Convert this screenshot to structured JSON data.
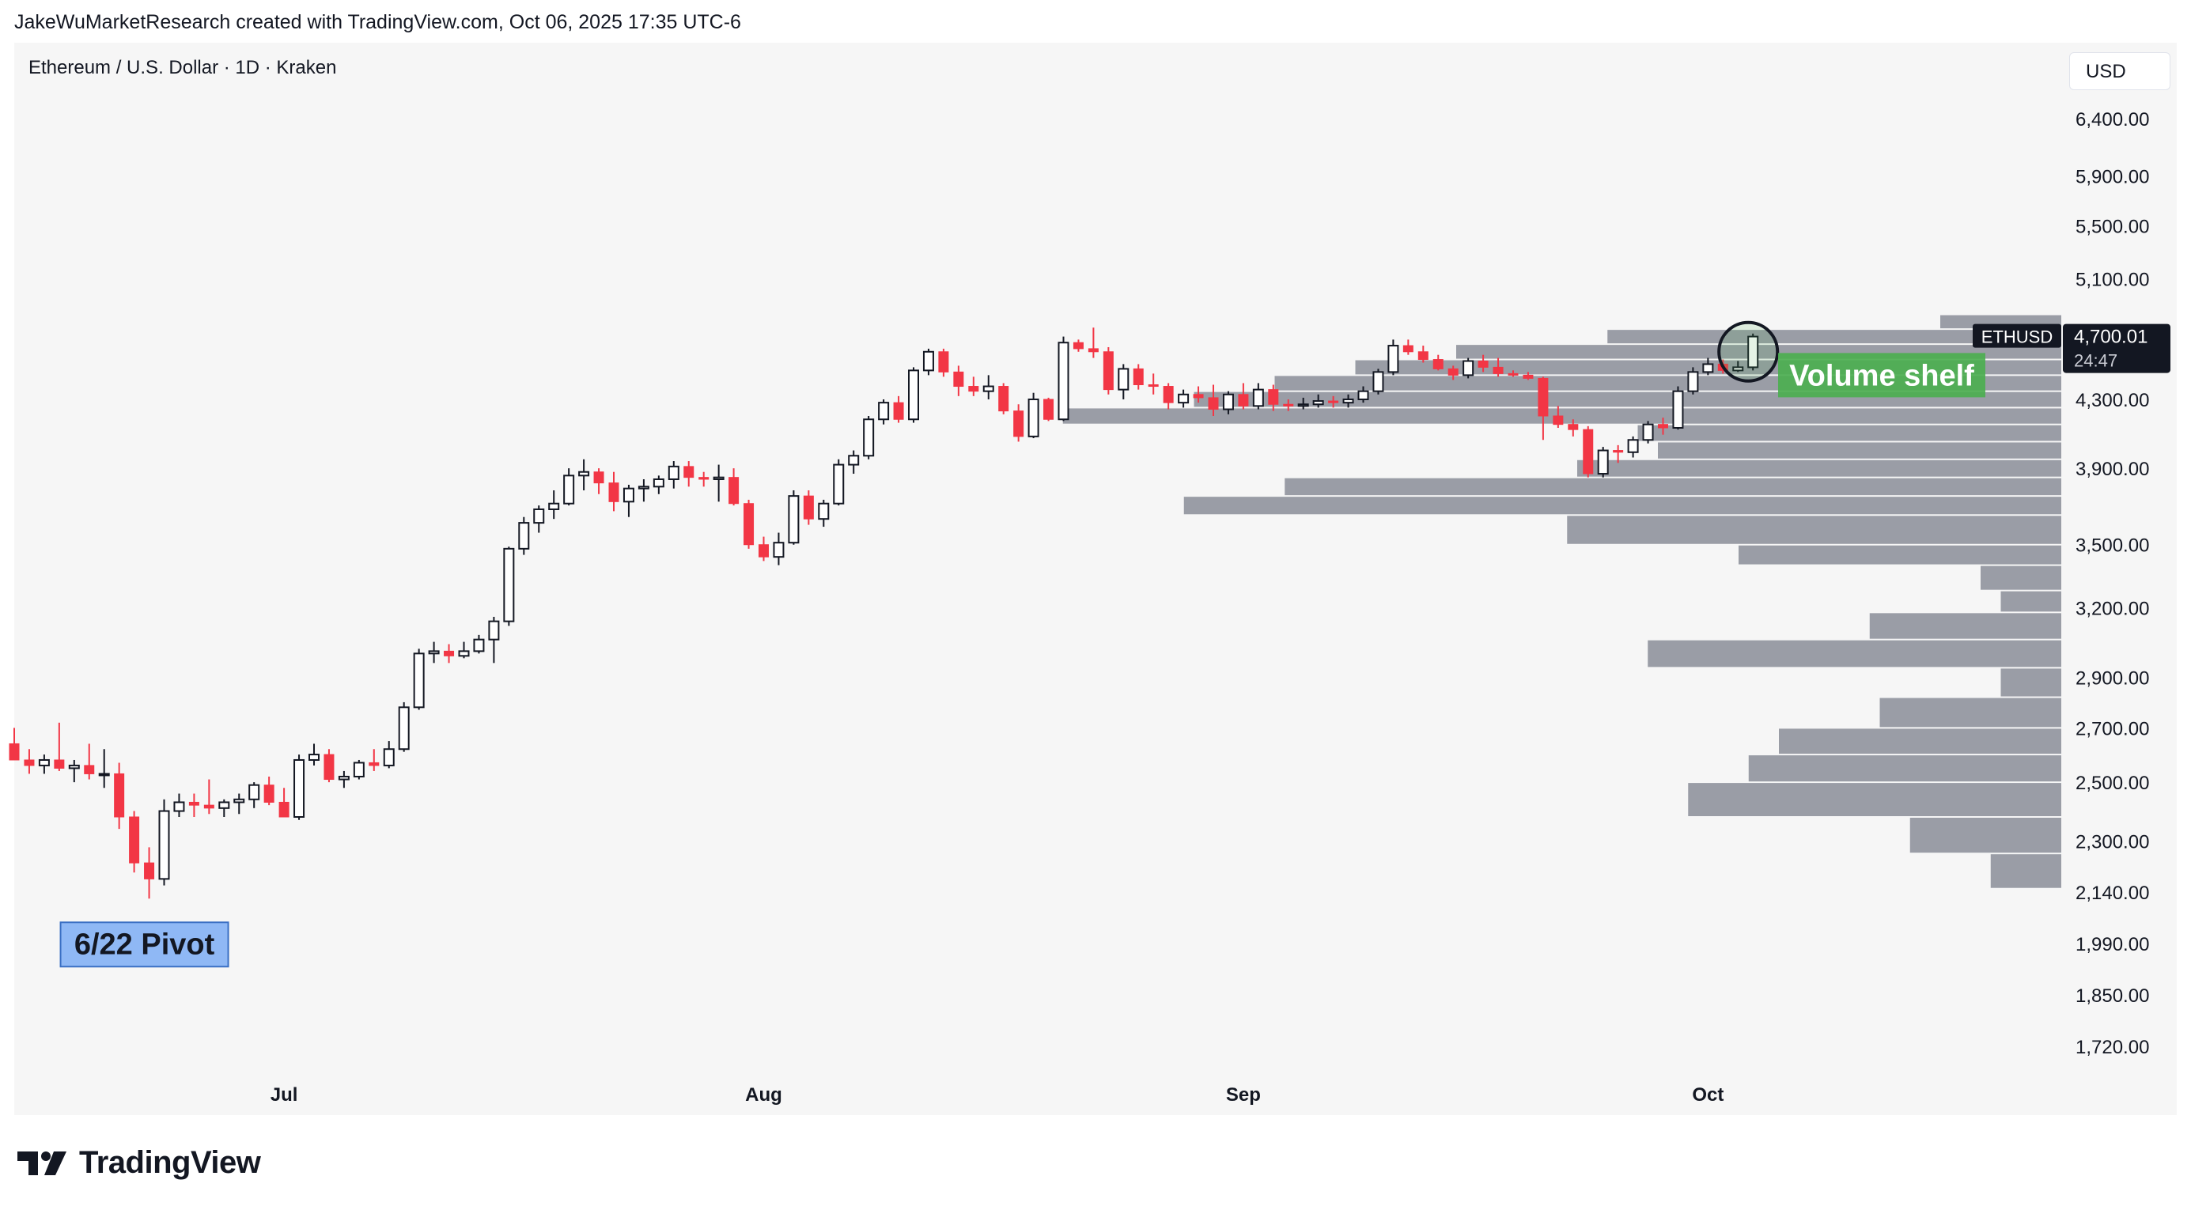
{
  "header": {
    "attribution": "JakeWuMarketResearch created with TradingView.com, Oct 06, 2025 17:35 UTC-6",
    "chart_title": "Ethereum / U.S. Dollar · 1D · Kraken",
    "currency_button": "USD"
  },
  "footer": {
    "brand": "TradingView"
  },
  "colors": {
    "up": "#ffffff",
    "down": "#f23645",
    "border": "#131722",
    "volume": "#9598a1",
    "pivot_bg": "#8fb8f5",
    "shelf_bg": "#4caf50"
  },
  "chart_data": {
    "type": "candlestick",
    "title": "Ethereum / U.S. Dollar · 1D · Kraken",
    "symbol": "ETHUSD",
    "last_price_label": "4,700.01",
    "countdown_label": "24:47",
    "y_scale": "log",
    "ylim": [
      1650,
      7000
    ],
    "y_tick_labels": [
      "6,400.00",
      "5,900.00",
      "5,500.00",
      "5,100.00",
      "4,300.00",
      "3,900.00",
      "3,500.00",
      "3,200.00",
      "2,900.00",
      "2,700.00",
      "2,500.00",
      "2,300.00",
      "2,140.00",
      "1,990.00",
      "1,850.00",
      "1,720.00"
    ],
    "y_tick_values": [
      6400,
      5900,
      5500,
      5100,
      4300,
      3900,
      3500,
      3200,
      2900,
      2700,
      2500,
      2300,
      2140,
      1990,
      1850,
      1720
    ],
    "x_tick_labels": [
      "Jul",
      "Aug",
      "Sep",
      "Oct"
    ],
    "x_tick_indices": [
      18,
      50,
      82,
      113
    ],
    "candles": [
      [
        2640,
        2700,
        2580,
        2580
      ],
      [
        2580,
        2620,
        2530,
        2560
      ],
      [
        2560,
        2600,
        2530,
        2580
      ],
      [
        2580,
        2720,
        2540,
        2550
      ],
      [
        2550,
        2580,
        2500,
        2560
      ],
      [
        2560,
        2640,
        2510,
        2530
      ],
      [
        2530,
        2620,
        2480,
        2530
      ],
      [
        2530,
        2570,
        2340,
        2380
      ],
      [
        2380,
        2400,
        2200,
        2230
      ],
      [
        2230,
        2280,
        2120,
        2180
      ],
      [
        2180,
        2440,
        2160,
        2400
      ],
      [
        2400,
        2460,
        2380,
        2430
      ],
      [
        2430,
        2460,
        2380,
        2420
      ],
      [
        2420,
        2510,
        2390,
        2410
      ],
      [
        2410,
        2440,
        2380,
        2430
      ],
      [
        2430,
        2460,
        2390,
        2440
      ],
      [
        2440,
        2500,
        2410,
        2490
      ],
      [
        2490,
        2520,
        2420,
        2430
      ],
      [
        2430,
        2480,
        2380,
        2380
      ],
      [
        2380,
        2600,
        2370,
        2580
      ],
      [
        2580,
        2640,
        2560,
        2600
      ],
      [
        2600,
        2620,
        2500,
        2510
      ],
      [
        2510,
        2540,
        2480,
        2520
      ],
      [
        2520,
        2580,
        2510,
        2570
      ],
      [
        2570,
        2620,
        2540,
        2560
      ],
      [
        2560,
        2650,
        2550,
        2620
      ],
      [
        2620,
        2800,
        2610,
        2780
      ],
      [
        2780,
        3020,
        2770,
        3000
      ],
      [
        3000,
        3050,
        2960,
        3010
      ],
      [
        3010,
        3040,
        2960,
        2990
      ],
      [
        2990,
        3050,
        2980,
        3010
      ],
      [
        3010,
        3080,
        3000,
        3060
      ],
      [
        3060,
        3160,
        2960,
        3140
      ],
      [
        3140,
        3490,
        3120,
        3480
      ],
      [
        3480,
        3640,
        3450,
        3610
      ],
      [
        3610,
        3700,
        3560,
        3680
      ],
      [
        3680,
        3780,
        3630,
        3710
      ],
      [
        3710,
        3900,
        3700,
        3860
      ],
      [
        3860,
        3950,
        3780,
        3880
      ],
      [
        3880,
        3900,
        3760,
        3820
      ],
      [
        3820,
        3880,
        3670,
        3720
      ],
      [
        3720,
        3810,
        3640,
        3790
      ],
      [
        3790,
        3840,
        3720,
        3800
      ],
      [
        3800,
        3860,
        3760,
        3840
      ],
      [
        3840,
        3940,
        3790,
        3910
      ],
      [
        3910,
        3940,
        3800,
        3850
      ],
      [
        3850,
        3880,
        3800,
        3840
      ],
      [
        3840,
        3920,
        3720,
        3850
      ],
      [
        3850,
        3900,
        3700,
        3710
      ],
      [
        3710,
        3730,
        3480,
        3500
      ],
      [
        3500,
        3540,
        3420,
        3440
      ],
      [
        3440,
        3560,
        3400,
        3510
      ],
      [
        3510,
        3780,
        3500,
        3750
      ],
      [
        3750,
        3780,
        3600,
        3630
      ],
      [
        3630,
        3730,
        3590,
        3710
      ],
      [
        3710,
        3950,
        3700,
        3920
      ],
      [
        3920,
        4000,
        3870,
        3970
      ],
      [
        3970,
        4200,
        3950,
        4180
      ],
      [
        4180,
        4300,
        4150,
        4280
      ],
      [
        4280,
        4320,
        4160,
        4180
      ],
      [
        4180,
        4500,
        4160,
        4480
      ],
      [
        4480,
        4620,
        4450,
        4600
      ],
      [
        4600,
        4620,
        4440,
        4470
      ],
      [
        4470,
        4510,
        4320,
        4380
      ],
      [
        4380,
        4440,
        4320,
        4350
      ],
      [
        4350,
        4450,
        4300,
        4380
      ],
      [
        4380,
        4400,
        4210,
        4230
      ],
      [
        4230,
        4270,
        4050,
        4080
      ],
      [
        4080,
        4340,
        4070,
        4300
      ],
      [
        4300,
        4310,
        4170,
        4180
      ],
      [
        4180,
        4700,
        4170,
        4660
      ],
      [
        4660,
        4680,
        4600,
        4620
      ],
      [
        4620,
        4760,
        4560,
        4600
      ],
      [
        4600,
        4630,
        4330,
        4360
      ],
      [
        4360,
        4520,
        4300,
        4490
      ],
      [
        4490,
        4520,
        4360,
        4390
      ],
      [
        4390,
        4460,
        4330,
        4380
      ],
      [
        4380,
        4400,
        4240,
        4280
      ],
      [
        4280,
        4360,
        4250,
        4330
      ],
      [
        4330,
        4380,
        4280,
        4310
      ],
      [
        4310,
        4390,
        4200,
        4240
      ],
      [
        4240,
        4350,
        4210,
        4330
      ],
      [
        4330,
        4400,
        4240,
        4260
      ],
      [
        4260,
        4400,
        4240,
        4360
      ],
      [
        4360,
        4390,
        4230,
        4270
      ],
      [
        4270,
        4300,
        4230,
        4260
      ],
      [
        4260,
        4310,
        4240,
        4270
      ],
      [
        4270,
        4330,
        4250,
        4290
      ],
      [
        4290,
        4320,
        4250,
        4280
      ],
      [
        4280,
        4330,
        4250,
        4300
      ],
      [
        4300,
        4380,
        4280,
        4350
      ],
      [
        4350,
        4490,
        4330,
        4470
      ],
      [
        4470,
        4680,
        4450,
        4640
      ],
      [
        4640,
        4680,
        4580,
        4600
      ],
      [
        4600,
        4640,
        4530,
        4550
      ],
      [
        4550,
        4580,
        4480,
        4490
      ],
      [
        4490,
        4510,
        4420,
        4450
      ],
      [
        4450,
        4560,
        4430,
        4540
      ],
      [
        4540,
        4580,
        4470,
        4500
      ],
      [
        4500,
        4560,
        4440,
        4460
      ],
      [
        4460,
        4480,
        4440,
        4450
      ],
      [
        4450,
        4470,
        4420,
        4430
      ],
      [
        4430,
        4440,
        4060,
        4200
      ],
      [
        4200,
        4260,
        4130,
        4150
      ],
      [
        4150,
        4180,
        4080,
        4120
      ],
      [
        4120,
        4140,
        3850,
        3870
      ],
      [
        3870,
        4020,
        3850,
        4000
      ],
      [
        4000,
        4030,
        3930,
        3990
      ],
      [
        3990,
        4080,
        3960,
        4060
      ],
      [
        4060,
        4170,
        4040,
        4150
      ],
      [
        4150,
        4190,
        4090,
        4130
      ],
      [
        4130,
        4380,
        4120,
        4350
      ],
      [
        4350,
        4500,
        4330,
        4470
      ],
      [
        4470,
        4560,
        4450,
        4520
      ],
      [
        4520,
        4550,
        4460,
        4480
      ],
      [
        4480,
        4540,
        4470,
        4500
      ],
      [
        4500,
        4720,
        4480,
        4700
      ]
    ],
    "volume_profile": [
      [
        4750,
        4850,
        60
      ],
      [
        4650,
        4750,
        225
      ],
      [
        4550,
        4650,
        300
      ],
      [
        4450,
        4550,
        350
      ],
      [
        4350,
        4450,
        390
      ],
      [
        4250,
        4350,
        430
      ],
      [
        4150,
        4250,
        495
      ],
      [
        4050,
        4150,
        210
      ],
      [
        3950,
        4050,
        200
      ],
      [
        3850,
        3950,
        240
      ],
      [
        3750,
        3850,
        385
      ],
      [
        3650,
        3750,
        435
      ],
      [
        3500,
        3650,
        245
      ],
      [
        3400,
        3500,
        160
      ],
      [
        3280,
        3400,
        40
      ],
      [
        3180,
        3280,
        30
      ],
      [
        3060,
        3180,
        95
      ],
      [
        2940,
        3060,
        205
      ],
      [
        2820,
        2940,
        30
      ],
      [
        2700,
        2820,
        90
      ],
      [
        2600,
        2700,
        140
      ],
      [
        2500,
        2600,
        155
      ],
      [
        2380,
        2500,
        185
      ],
      [
        2260,
        2380,
        75
      ],
      [
        2150,
        2260,
        35
      ]
    ],
    "annotations": [
      {
        "text": "6/22 Pivot",
        "candle_index": 9
      },
      {
        "text": "Volume shelf",
        "price": 4450
      }
    ]
  }
}
